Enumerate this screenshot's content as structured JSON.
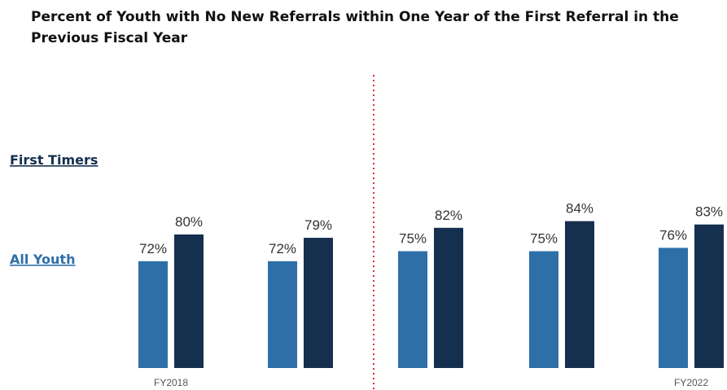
{
  "title": "Percent of Youth with No New Referrals within One Year of the First Referral in the Previous Fiscal Year",
  "colors": {
    "all_youth": "#2e6fa8",
    "first_timers": "#15304f",
    "divider": "#d9342f",
    "label_text": "#333333",
    "tick_text": "#555555"
  },
  "chart_data": {
    "type": "bar",
    "categories": [
      "FY2018",
      "",
      "",
      "",
      "FY2022"
    ],
    "series": [
      {
        "name": "All Youth",
        "values": [
          72,
          72,
          75,
          75,
          76
        ],
        "labels": [
          "72%",
          "72%",
          "75%",
          "75%",
          "76%"
        ]
      },
      {
        "name": "First Timers",
        "values": [
          80,
          79,
          82,
          84,
          83
        ],
        "labels": [
          "80%",
          "79%",
          "82%",
          "84%",
          "83%"
        ]
      }
    ],
    "legend": {
      "position": "left",
      "entries": [
        "First Timers",
        "All Youth"
      ]
    },
    "grid": false,
    "annotations": [
      "dotted vertical divider between the second and third groups"
    ]
  }
}
